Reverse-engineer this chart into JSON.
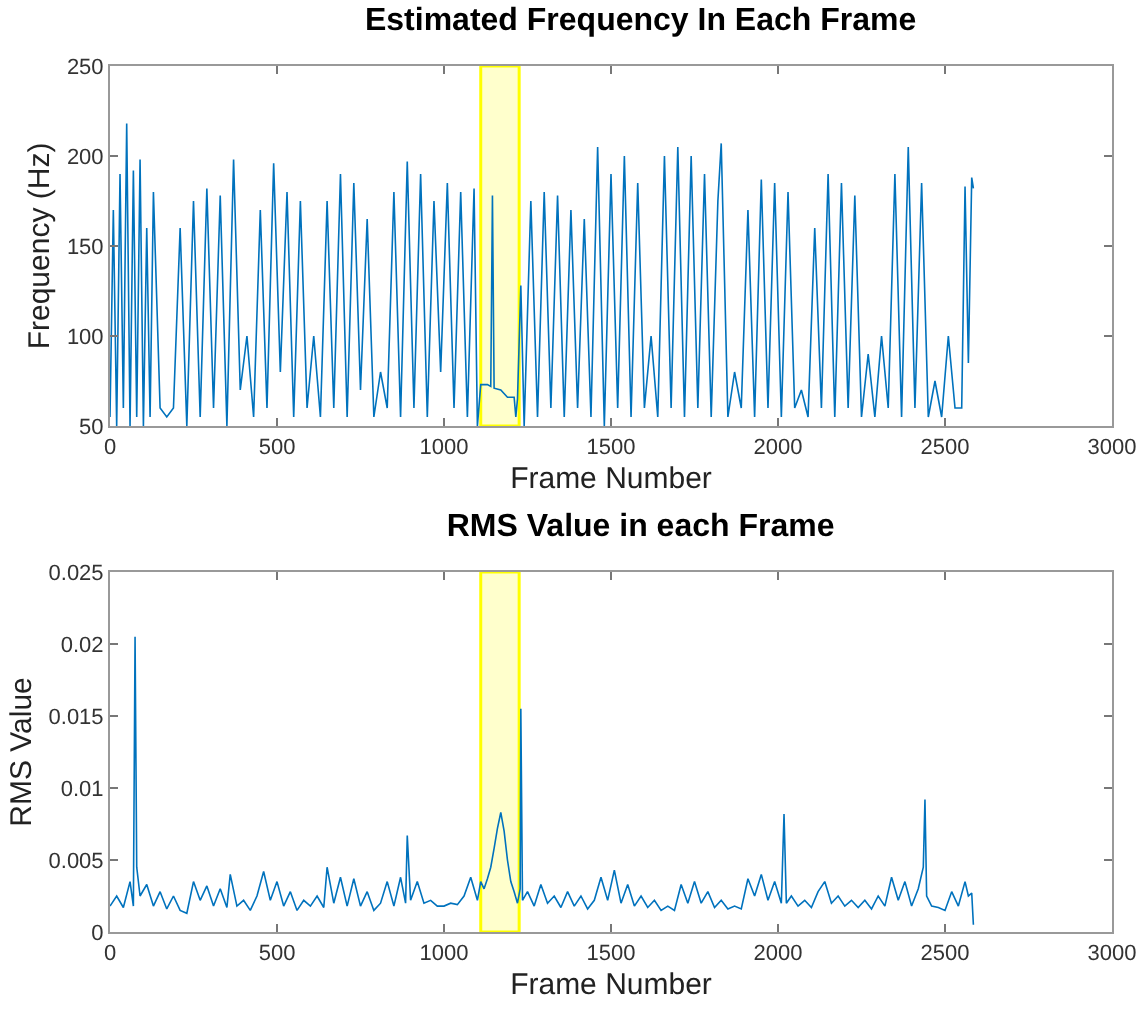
{
  "chart_data": [
    {
      "type": "line",
      "title": "Estimated Frequency In Each Frame",
      "xlabel": "Frame Number",
      "ylabel": "Frequency (Hz)",
      "series": [
        {
          "color": "#0072bd",
          "x": [
            0,
            10,
            20,
            30,
            40,
            50,
            60,
            70,
            80,
            90,
            100,
            110,
            120,
            130,
            150,
            170,
            190,
            210,
            230,
            250,
            270,
            290,
            310,
            330,
            350,
            370,
            390,
            410,
            430,
            450,
            470,
            490,
            510,
            530,
            550,
            570,
            590,
            610,
            630,
            650,
            670,
            690,
            710,
            730,
            750,
            770,
            790,
            810,
            830,
            850,
            870,
            890,
            910,
            930,
            950,
            970,
            990,
            1010,
            1030,
            1050,
            1070,
            1090,
            1100,
            1110,
            1130,
            1140,
            1145,
            1150,
            1170,
            1190,
            1210,
            1215,
            1220,
            1230,
            1240,
            1260,
            1280,
            1300,
            1320,
            1340,
            1360,
            1380,
            1400,
            1420,
            1440,
            1460,
            1480,
            1500,
            1520,
            1540,
            1560,
            1580,
            1600,
            1620,
            1640,
            1660,
            1680,
            1700,
            1720,
            1740,
            1760,
            1780,
            1800,
            1820,
            1830,
            1850,
            1870,
            1890,
            1910,
            1930,
            1950,
            1970,
            1990,
            2010,
            2030,
            2050,
            2070,
            2090,
            2110,
            2130,
            2150,
            2170,
            2190,
            2210,
            2230,
            2250,
            2270,
            2290,
            2310,
            2330,
            2350,
            2370,
            2390,
            2410,
            2430,
            2450,
            2470,
            2490,
            2510,
            2530,
            2550,
            2560,
            2570,
            2580,
            2585
          ],
          "values": [
            55,
            170,
            50,
            190,
            60,
            218,
            50,
            192,
            55,
            198,
            50,
            160,
            55,
            180,
            60,
            55,
            60,
            160,
            50,
            175,
            55,
            182,
            60,
            178,
            50,
            198,
            70,
            100,
            55,
            170,
            60,
            196,
            80,
            180,
            55,
            175,
            60,
            100,
            55,
            175,
            60,
            190,
            55,
            185,
            70,
            165,
            55,
            80,
            60,
            180,
            55,
            197,
            60,
            190,
            55,
            175,
            80,
            185,
            60,
            180,
            55,
            182,
            50,
            73,
            73,
            72,
            178,
            71,
            70,
            66,
            66,
            55,
            65,
            128,
            50,
            175,
            55,
            180,
            60,
            178,
            55,
            170,
            60,
            165,
            55,
            205,
            50,
            190,
            60,
            200,
            55,
            185,
            60,
            100,
            55,
            200,
            60,
            205,
            55,
            200,
            60,
            190,
            55,
            175,
            207,
            55,
            80,
            60,
            170,
            55,
            187,
            60,
            185,
            55,
            180,
            60,
            70,
            55,
            160,
            60,
            190,
            55,
            185,
            60,
            178,
            55,
            90,
            55,
            100,
            60,
            190,
            55,
            205,
            60,
            185,
            55,
            75,
            55,
            100,
            60,
            60,
            183,
            85,
            188,
            182
          ]
        }
      ],
      "xlim": [
        0,
        3000
      ],
      "xticks": [
        0,
        500,
        1000,
        1500,
        2000,
        2500,
        3000
      ],
      "ylim": [
        50,
        250
      ],
      "yticks": [
        50,
        100,
        150,
        200,
        250
      ],
      "bands": [
        {
          "axis": "x",
          "from": 1110,
          "to": 1225,
          "color": "#ffff00"
        }
      ]
    },
    {
      "type": "line",
      "title": "RMS Value in each Frame",
      "xlabel": "Frame Number",
      "ylabel": "RMS Value",
      "series": [
        {
          "color": "#0072bd",
          "x": [
            0,
            20,
            40,
            60,
            70,
            75,
            80,
            90,
            110,
            130,
            150,
            170,
            190,
            210,
            230,
            250,
            270,
            290,
            310,
            330,
            350,
            360,
            380,
            400,
            420,
            440,
            460,
            480,
            500,
            520,
            540,
            560,
            580,
            600,
            620,
            640,
            650,
            670,
            690,
            710,
            730,
            750,
            770,
            790,
            810,
            830,
            850,
            870,
            885,
            890,
            900,
            920,
            940,
            960,
            980,
            1000,
            1020,
            1040,
            1060,
            1080,
            1100,
            1110,
            1120,
            1130,
            1140,
            1150,
            1160,
            1170,
            1180,
            1190,
            1200,
            1210,
            1220,
            1228,
            1230,
            1235,
            1250,
            1270,
            1290,
            1310,
            1330,
            1350,
            1370,
            1390,
            1410,
            1430,
            1450,
            1470,
            1490,
            1510,
            1530,
            1550,
            1570,
            1590,
            1610,
            1630,
            1650,
            1670,
            1690,
            1710,
            1730,
            1750,
            1770,
            1790,
            1810,
            1830,
            1850,
            1870,
            1890,
            1910,
            1930,
            1950,
            1970,
            1990,
            2010,
            2018,
            2025,
            2040,
            2060,
            2080,
            2100,
            2120,
            2140,
            2160,
            2180,
            2200,
            2220,
            2240,
            2260,
            2280,
            2300,
            2320,
            2340,
            2360,
            2380,
            2400,
            2420,
            2435,
            2440,
            2445,
            2460,
            2480,
            2500,
            2520,
            2540,
            2560,
            2570,
            2580,
            2585
          ],
          "values": [
            0.0018,
            0.0025,
            0.0017,
            0.0035,
            0.0018,
            0.0205,
            0.0045,
            0.0025,
            0.0033,
            0.0018,
            0.0028,
            0.0016,
            0.0025,
            0.0015,
            0.0013,
            0.0035,
            0.0022,
            0.0032,
            0.0018,
            0.003,
            0.0017,
            0.004,
            0.0018,
            0.0022,
            0.0015,
            0.0025,
            0.0042,
            0.0022,
            0.0035,
            0.0018,
            0.0028,
            0.0015,
            0.0022,
            0.0018,
            0.0025,
            0.0017,
            0.0045,
            0.002,
            0.0038,
            0.0018,
            0.0037,
            0.0018,
            0.0028,
            0.0015,
            0.002,
            0.0035,
            0.0018,
            0.0038,
            0.002,
            0.0067,
            0.0022,
            0.0035,
            0.002,
            0.0022,
            0.0018,
            0.0018,
            0.002,
            0.0019,
            0.0025,
            0.0038,
            0.0022,
            0.0035,
            0.003,
            0.0037,
            0.0045,
            0.0058,
            0.0072,
            0.0083,
            0.007,
            0.005,
            0.0035,
            0.0028,
            0.002,
            0.003,
            0.0155,
            0.0022,
            0.0028,
            0.0018,
            0.0033,
            0.002,
            0.0025,
            0.0017,
            0.0028,
            0.0018,
            0.0025,
            0.0016,
            0.0022,
            0.0038,
            0.0022,
            0.0043,
            0.002,
            0.0033,
            0.0018,
            0.0025,
            0.0017,
            0.0022,
            0.0015,
            0.0018,
            0.0015,
            0.0033,
            0.002,
            0.0035,
            0.002,
            0.0028,
            0.0017,
            0.0022,
            0.0016,
            0.0018,
            0.0016,
            0.0037,
            0.0025,
            0.004,
            0.0022,
            0.0035,
            0.002,
            0.0082,
            0.002,
            0.0025,
            0.0018,
            0.0022,
            0.0017,
            0.0028,
            0.0035,
            0.002,
            0.0025,
            0.0018,
            0.0022,
            0.0017,
            0.0022,
            0.0016,
            0.0025,
            0.0018,
            0.0038,
            0.0022,
            0.0035,
            0.0018,
            0.003,
            0.0045,
            0.0092,
            0.0025,
            0.0018,
            0.0017,
            0.0015,
            0.0028,
            0.0018,
            0.0035,
            0.0025,
            0.0027,
            0.0005
          ]
        }
      ],
      "xlim": [
        0,
        3000
      ],
      "xticks": [
        0,
        500,
        1000,
        1500,
        2000,
        2500,
        3000
      ],
      "ylim": [
        0,
        0.025
      ],
      "yticks": [
        0,
        0.005,
        0.01,
        0.015,
        0.02,
        0.025
      ],
      "bands": [
        {
          "axis": "x",
          "from": 1110,
          "to": 1225,
          "color": "#ffff00"
        }
      ]
    }
  ]
}
